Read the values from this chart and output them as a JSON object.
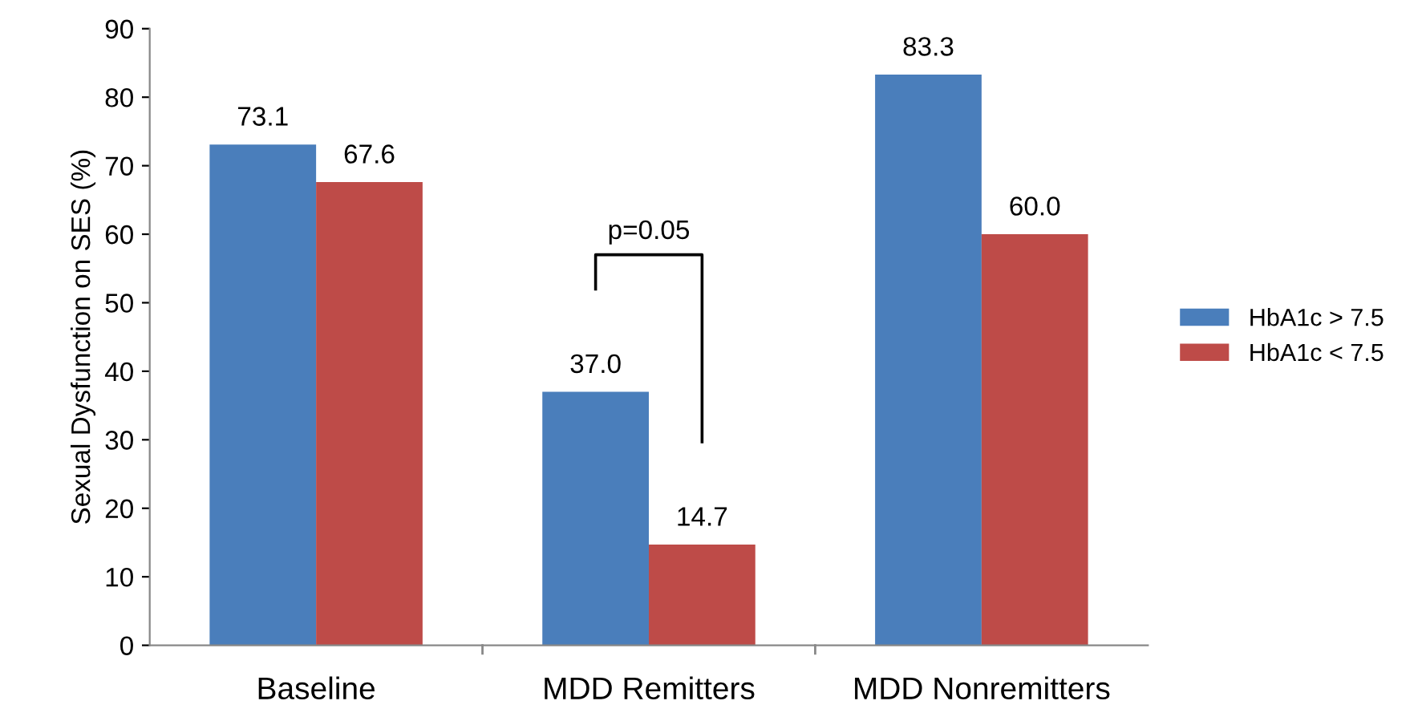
{
  "chart_data": {
    "type": "bar",
    "ylabel": "Sexual Dysfunction on SES (%)",
    "categories": [
      "Baseline",
      "MDD Remitters",
      "MDD Nonremitters"
    ],
    "series": [
      {
        "name": "HbA1c > 7.5",
        "color": "#4a7ebb",
        "values": [
          73.1,
          37.0,
          83.3
        ],
        "value_labels": [
          "73.1",
          "37.0",
          "83.3"
        ]
      },
      {
        "name": "HbA1c < 7.5",
        "color": "#be4b48",
        "values": [
          67.6,
          14.7,
          60.0
        ],
        "value_labels": [
          "67.6",
          "14.7",
          "60.0"
        ]
      }
    ],
    "ylim": [
      0,
      90
    ],
    "yticks": [
      0,
      10,
      20,
      30,
      40,
      50,
      60,
      70,
      80,
      90
    ],
    "grid": false,
    "legend": "right",
    "annotations": [
      "p=0.05"
    ]
  }
}
